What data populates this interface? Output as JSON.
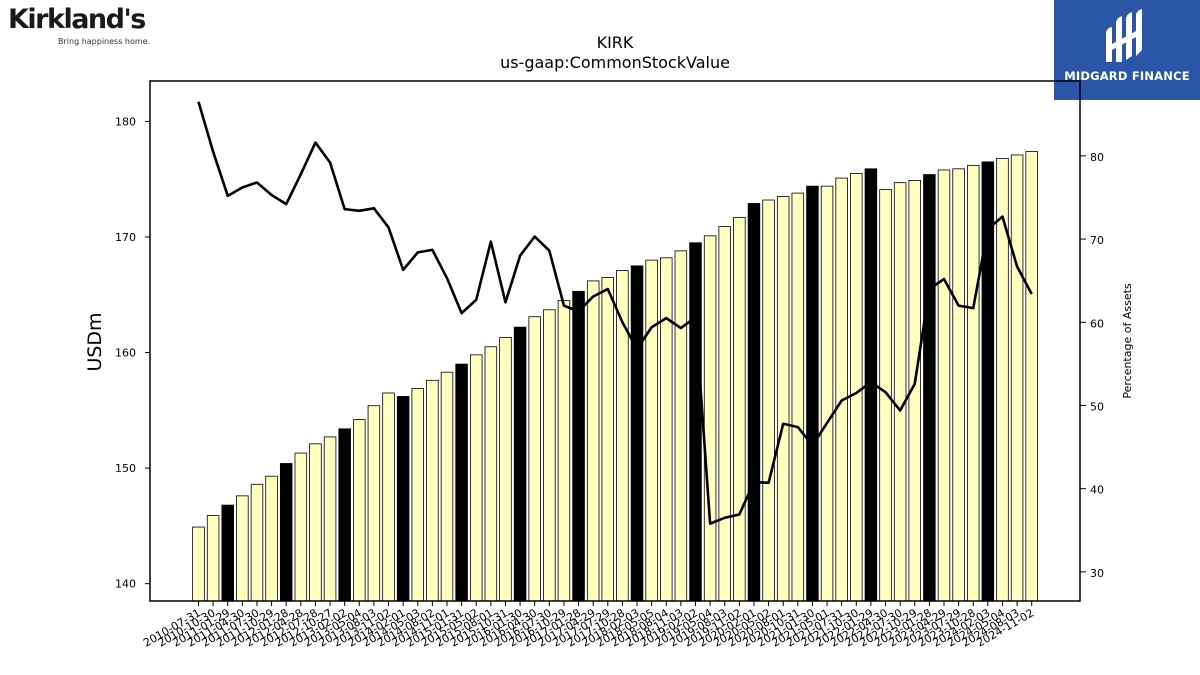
{
  "header": {
    "brand_left": "Kirkland's",
    "brand_left_tagline": "Bring happiness home.",
    "brand_right": "MIDGARD FINANCE"
  },
  "colors": {
    "bar_fill": "#ffffc0",
    "bar_highlight": "#000000",
    "line": "#000000",
    "logo_bg": "#2b55a7"
  },
  "chart_data": {
    "type": "bar",
    "title": "KIRK",
    "subtitle": "us-gaap:CommonStockValue",
    "ylabel": "USDm",
    "y2label": "Percentage of Assets",
    "ylim": [
      138.5,
      183.5
    ],
    "y2lim": [
      26.5,
      89
    ],
    "yticks": [
      140,
      150,
      160,
      170,
      180
    ],
    "y2ticks": [
      30,
      40,
      50,
      60,
      70,
      80
    ],
    "categories": [
      "2010-07-31",
      "2010-10-30",
      "2011-01-29",
      "2011-04-30",
      "2011-07-30",
      "2011-10-29",
      "2012-01-28",
      "2012-04-28",
      "2012-07-28",
      "2012-10-27",
      "2013-02-02",
      "2013-05-04",
      "2013-08-03",
      "2013-11-02",
      "2014-02-01",
      "2014-05-03",
      "2014-08-02",
      "2014-11-01",
      "2015-01-31",
      "2015-05-02",
      "2015-08-01",
      "2015-10-31",
      "2016-01-30",
      "2016-04-30",
      "2016-07-30",
      "2016-10-29",
      "2017-01-28",
      "2017-04-29",
      "2017-07-29",
      "2017-10-28",
      "2018-02-03",
      "2018-05-05",
      "2018-08-04",
      "2018-11-03",
      "2019-02-02",
      "2019-05-04",
      "2019-08-03",
      "2019-11-02",
      "2020-02-01",
      "2020-05-02",
      "2020-08-01",
      "2020-10-31",
      "2021-01-30",
      "2021-05-01",
      "2021-07-31",
      "2021-10-30",
      "2022-01-29",
      "2022-04-30",
      "2022-07-30",
      "2022-10-29",
      "2023-01-28",
      "2023-04-29",
      "2023-07-29",
      "2023-10-28",
      "2024-02-03",
      "2024-05-04",
      "2024-08-03",
      "2024-11-02"
    ],
    "values": [
      144.9,
      145.9,
      146.8,
      147.6,
      148.6,
      149.3,
      150.4,
      151.3,
      152.1,
      152.7,
      153.4,
      154.2,
      155.4,
      156.5,
      156.2,
      156.9,
      157.6,
      158.3,
      159.0,
      159.8,
      160.5,
      161.3,
      162.2,
      163.1,
      163.7,
      164.5,
      165.3,
      166.2,
      166.5,
      167.1,
      167.5,
      168.0,
      168.2,
      168.8,
      169.5,
      170.1,
      170.9,
      171.7,
      172.9,
      173.2,
      173.5,
      173.8,
      174.4,
      174.4,
      175.1,
      175.5,
      175.9,
      174.1,
      174.7,
      174.9,
      175.4,
      175.8,
      175.9,
      176.2,
      176.5,
      176.8,
      177.1,
      177.4
    ],
    "highlight_indices": [
      2,
      6,
      10,
      14,
      18,
      22,
      26,
      30,
      34,
      38,
      42,
      46,
      50,
      54
    ],
    "pct_assets": [
      86.5,
      80.5,
      75.2,
      76.2,
      76.8,
      75.3,
      74.2,
      77.8,
      81.6,
      79.2,
      73.6,
      73.4,
      73.7,
      71.4,
      66.3,
      68.4,
      68.7,
      65.3,
      61.1,
      62.7,
      69.7,
      62.4,
      68.0,
      70.3,
      68.6,
      62.0,
      61.3,
      63.1,
      64.0,
      60.0,
      56.8,
      59.4,
      60.5,
      59.3,
      60.6,
      35.8,
      36.5,
      36.9,
      40.8,
      40.7,
      47.8,
      47.4,
      45.2,
      47.9,
      50.6,
      51.5,
      52.8,
      51.6,
      49.4,
      52.6,
      64.0,
      65.2,
      62.0,
      61.7,
      71.2,
      72.7,
      66.7,
      63.4
    ],
    "legend": "none",
    "grid": false
  }
}
